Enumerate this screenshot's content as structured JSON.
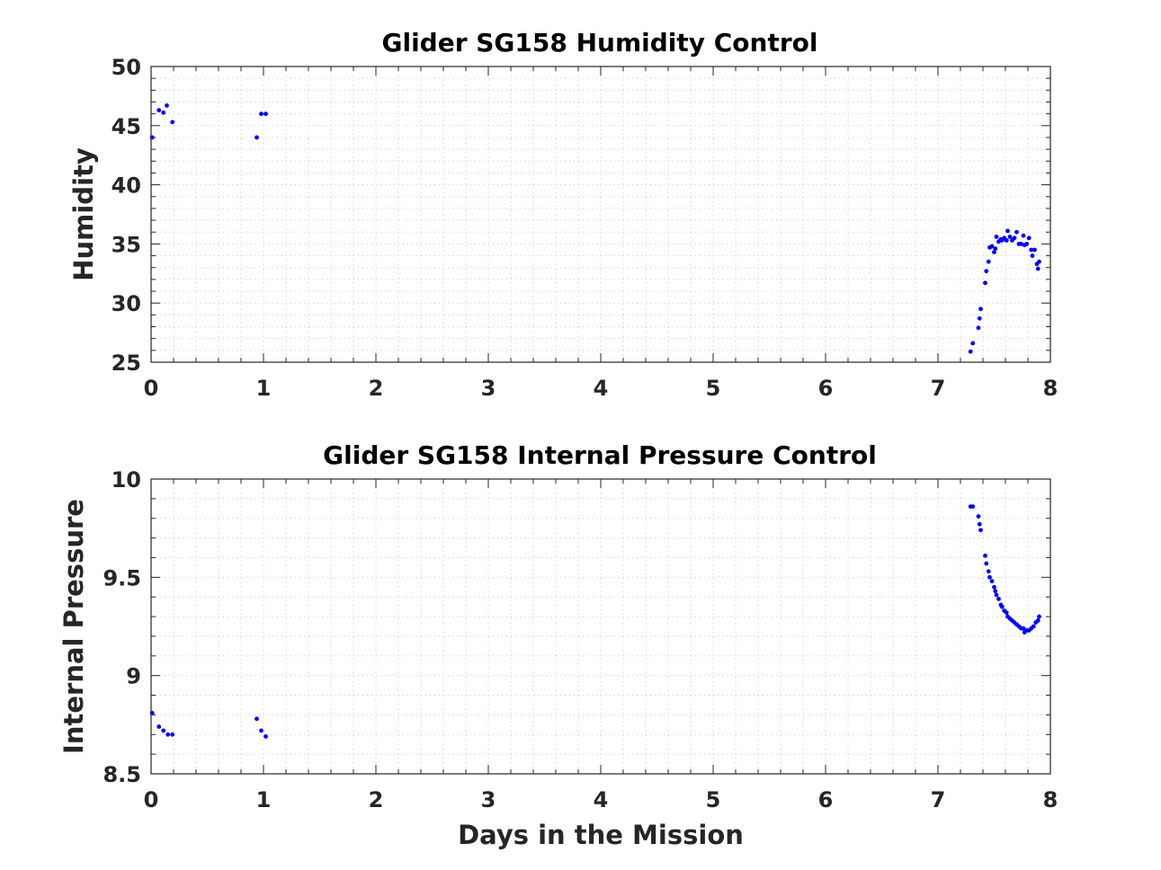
{
  "chart_data": [
    {
      "type": "scatter",
      "title": "Glider SG158 Humidity Control",
      "xlabel": "",
      "ylabel": "Humidity",
      "xlim": [
        0,
        8
      ],
      "ylim": [
        25,
        50
      ],
      "xticks": [
        "0",
        "1",
        "2",
        "3",
        "4",
        "5",
        "6",
        "7",
        "8"
      ],
      "yticks": [
        "25",
        "30",
        "35",
        "40",
        "45",
        "50"
      ],
      "grid": "major and minor, dotted",
      "color": "#0000ff",
      "x": [
        0.01,
        0.07,
        0.11,
        0.14,
        0.19,
        0.94,
        0.98,
        1.02,
        7.29,
        7.31,
        7.36,
        7.37,
        7.38,
        7.42,
        7.43,
        7.45,
        7.46,
        7.48,
        7.5,
        7.51,
        7.52,
        7.54,
        7.56,
        7.57,
        7.59,
        7.61,
        7.62,
        7.64,
        7.66,
        7.68,
        7.7,
        7.72,
        7.74,
        7.76,
        7.77,
        7.79,
        7.81,
        7.83,
        7.84,
        7.86,
        7.88,
        7.89,
        7.9
      ],
      "y": [
        44.0,
        46.3,
        46.1,
        46.7,
        45.3,
        44.0,
        46.0,
        46.0,
        25.9,
        26.6,
        27.9,
        28.7,
        29.5,
        31.7,
        32.7,
        33.5,
        34.7,
        34.8,
        34.3,
        34.6,
        35.6,
        35.2,
        35.4,
        35.3,
        35.5,
        35.3,
        36.1,
        35.6,
        35.3,
        35.5,
        36.0,
        35.0,
        35.0,
        35.7,
        34.9,
        35.0,
        35.5,
        34.5,
        34.0,
        34.5,
        33.3,
        32.9,
        33.5
      ]
    },
    {
      "type": "scatter",
      "title": "Glider SG158 Internal Pressure Control",
      "xlabel": "Days in the Mission",
      "ylabel": "Internal Pressure",
      "xlim": [
        0,
        8
      ],
      "ylim": [
        8.5,
        10
      ],
      "xticks": [
        "0",
        "1",
        "2",
        "3",
        "4",
        "5",
        "6",
        "7",
        "8"
      ],
      "yticks": [
        "8.5",
        "9",
        "9.5",
        "10"
      ],
      "grid": "major and minor, dotted",
      "color": "#0000ff",
      "x": [
        0.01,
        0.07,
        0.11,
        0.15,
        0.19,
        0.94,
        0.98,
        1.02,
        7.29,
        7.31,
        7.36,
        7.37,
        7.38,
        7.42,
        7.43,
        7.45,
        7.46,
        7.48,
        7.5,
        7.51,
        7.52,
        7.54,
        7.56,
        7.57,
        7.59,
        7.61,
        7.62,
        7.64,
        7.66,
        7.68,
        7.7,
        7.72,
        7.74,
        7.76,
        7.77,
        7.79,
        7.81,
        7.83,
        7.85,
        7.87,
        7.89,
        7.9
      ],
      "y": [
        8.81,
        8.74,
        8.72,
        8.7,
        8.7,
        8.78,
        8.72,
        8.69,
        9.86,
        9.86,
        9.81,
        9.77,
        9.74,
        9.61,
        9.57,
        9.53,
        9.5,
        9.48,
        9.45,
        9.43,
        9.41,
        9.39,
        9.36,
        9.35,
        9.33,
        9.32,
        9.3,
        9.29,
        9.28,
        9.27,
        9.26,
        9.25,
        9.24,
        9.24,
        9.22,
        9.23,
        9.23,
        9.24,
        9.25,
        9.27,
        9.28,
        9.3
      ]
    }
  ]
}
